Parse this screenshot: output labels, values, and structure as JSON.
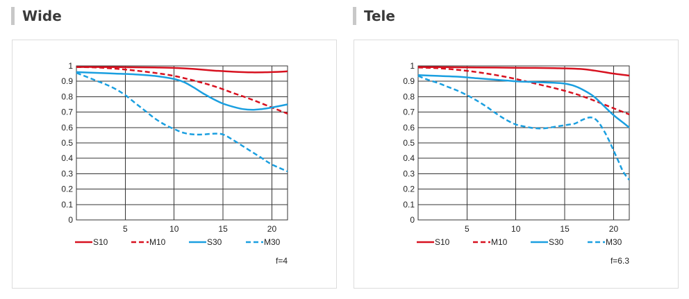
{
  "panels": [
    {
      "title": "Wide"
    },
    {
      "title": "Tele"
    }
  ],
  "chart_data": [
    {
      "type": "line",
      "panel_title": "Wide",
      "xlim": [
        0,
        21.6
      ],
      "ylim": [
        0,
        1
      ],
      "xticks": [
        5,
        10,
        15,
        20
      ],
      "xtick_labels": [
        "5",
        "10",
        "15",
        "20"
      ],
      "yticks": [
        0,
        0.1,
        0.2,
        0.3,
        0.4,
        0.5,
        0.6,
        0.7,
        0.8,
        0.9,
        1
      ],
      "ytick_labels": [
        "0",
        "0.1",
        "0.2",
        "0.3",
        "0.4",
        "0.5",
        "0.6",
        "0.7",
        "0.8",
        "0.9",
        "1"
      ],
      "grid": true,
      "legend_position": "bottom",
      "annotation": "f=4",
      "series": [
        {
          "name": "S10",
          "color": "#d7111f",
          "dash": "solid",
          "x": [
            0,
            2,
            4,
            6,
            8,
            10,
            12,
            14,
            16,
            18,
            20,
            21.6
          ],
          "y": [
            0.993,
            0.993,
            0.992,
            0.991,
            0.99,
            0.987,
            0.98,
            0.97,
            0.962,
            0.958,
            0.96,
            0.965
          ]
        },
        {
          "name": "M10",
          "color": "#d7111f",
          "dash": "dashed",
          "x": [
            0,
            2,
            4,
            6,
            8,
            10,
            12,
            14,
            16,
            18,
            20,
            21.6
          ],
          "y": [
            0.993,
            0.99,
            0.982,
            0.97,
            0.955,
            0.935,
            0.905,
            0.87,
            0.825,
            0.78,
            0.73,
            0.69
          ]
        },
        {
          "name": "S30",
          "color": "#1a9fe0",
          "dash": "solid",
          "x": [
            0,
            2,
            4,
            6,
            8,
            10,
            11,
            12,
            13,
            14,
            15,
            16,
            17,
            18,
            19,
            20,
            21.6
          ],
          "y": [
            0.96,
            0.955,
            0.95,
            0.945,
            0.935,
            0.915,
            0.895,
            0.86,
            0.82,
            0.785,
            0.755,
            0.735,
            0.72,
            0.715,
            0.72,
            0.73,
            0.75
          ]
        },
        {
          "name": "M30",
          "color": "#1a9fe0",
          "dash": "dashed",
          "x": [
            0,
            1,
            2,
            3,
            4,
            5,
            6,
            7,
            8,
            9,
            10,
            11,
            12,
            13,
            14,
            15,
            16,
            17,
            18,
            19,
            20,
            21.6
          ],
          "y": [
            0.955,
            0.93,
            0.905,
            0.88,
            0.85,
            0.81,
            0.76,
            0.71,
            0.66,
            0.62,
            0.59,
            0.565,
            0.555,
            0.555,
            0.56,
            0.555,
            0.52,
            0.48,
            0.44,
            0.4,
            0.36,
            0.315
          ]
        }
      ]
    },
    {
      "type": "line",
      "panel_title": "Tele",
      "xlim": [
        0,
        21.6
      ],
      "ylim": [
        0,
        1
      ],
      "xticks": [
        5,
        10,
        15,
        20
      ],
      "xtick_labels": [
        "5",
        "10",
        "15",
        "20"
      ],
      "yticks": [
        0,
        0.1,
        0.2,
        0.3,
        0.4,
        0.5,
        0.6,
        0.7,
        0.8,
        0.9,
        1
      ],
      "ytick_labels": [
        "0",
        "0.1",
        "0.2",
        "0.3",
        "0.4",
        "0.5",
        "0.6",
        "0.7",
        "0.8",
        "0.9",
        "1"
      ],
      "grid": true,
      "legend_position": "bottom",
      "annotation": "f=6.3",
      "series": [
        {
          "name": "S10",
          "color": "#d7111f",
          "dash": "solid",
          "x": [
            0,
            2,
            4,
            6,
            8,
            10,
            12,
            14,
            16,
            17,
            18,
            19,
            20,
            21.6
          ],
          "y": [
            0.993,
            0.992,
            0.991,
            0.99,
            0.989,
            0.988,
            0.987,
            0.985,
            0.982,
            0.978,
            0.97,
            0.96,
            0.95,
            0.937
          ]
        },
        {
          "name": "M10",
          "color": "#d7111f",
          "dash": "dashed",
          "x": [
            0,
            2,
            4,
            6,
            8,
            10,
            12,
            14,
            16,
            18,
            20,
            21.6
          ],
          "y": [
            0.99,
            0.985,
            0.975,
            0.96,
            0.94,
            0.915,
            0.885,
            0.855,
            0.82,
            0.775,
            0.725,
            0.685
          ]
        },
        {
          "name": "S30",
          "color": "#1a9fe0",
          "dash": "solid",
          "x": [
            0,
            2,
            4,
            6,
            8,
            10,
            12,
            14,
            15,
            16,
            17,
            18,
            19,
            20,
            21,
            21.6
          ],
          "y": [
            0.94,
            0.935,
            0.93,
            0.92,
            0.91,
            0.9,
            0.895,
            0.89,
            0.885,
            0.87,
            0.84,
            0.8,
            0.74,
            0.68,
            0.63,
            0.6
          ]
        },
        {
          "name": "M30",
          "color": "#1a9fe0",
          "dash": "dashed",
          "x": [
            0,
            1,
            2,
            3,
            4,
            5,
            6,
            7,
            8,
            9,
            10,
            11,
            12,
            13,
            14,
            15,
            16,
            16.5,
            17,
            17.5,
            18,
            18.5,
            19,
            19.5,
            20,
            20.5,
            21,
            21.6
          ],
          "y": [
            0.935,
            0.91,
            0.89,
            0.865,
            0.84,
            0.81,
            0.775,
            0.735,
            0.69,
            0.65,
            0.62,
            0.605,
            0.595,
            0.595,
            0.605,
            0.615,
            0.625,
            0.64,
            0.655,
            0.665,
            0.66,
            0.63,
            0.58,
            0.52,
            0.45,
            0.38,
            0.31,
            0.26
          ]
        }
      ]
    }
  ]
}
